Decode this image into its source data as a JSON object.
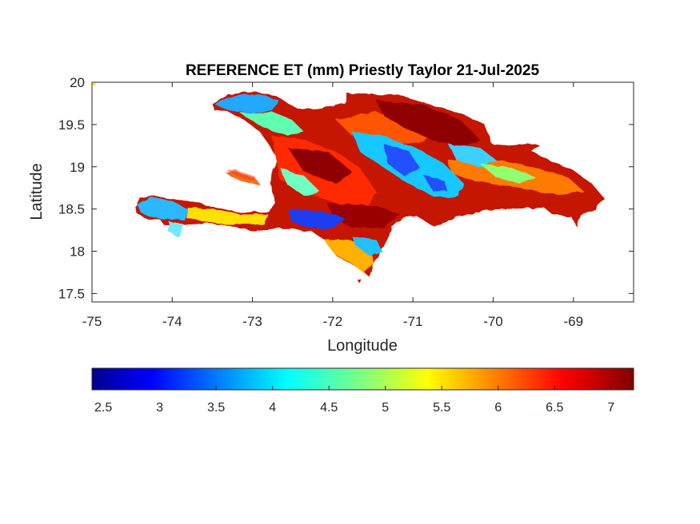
{
  "title": "REFERENCE ET (mm) Priestly Taylor 21-Jul-2025",
  "axes": {
    "xlabel": "Longitude",
    "ylabel": "Latitude",
    "xlim": [
      -75,
      -68.25
    ],
    "ylim": [
      17.4,
      20
    ],
    "xticks": [
      -75,
      -74,
      -73,
      -72,
      -71,
      -70,
      -69
    ],
    "xtick_labels": [
      "-75",
      "-74",
      "-73",
      "-72",
      "-71",
      "-70",
      "-69"
    ],
    "yticks": [
      17.5,
      18,
      18.5,
      19,
      19.5,
      20
    ],
    "ytick_labels": [
      "17.5",
      "18",
      "18.5",
      "19",
      "19.5",
      "20"
    ]
  },
  "colorbar": {
    "colormap": "jet",
    "range": [
      2.4,
      7.2
    ],
    "ticks": [
      2.5,
      3,
      3.5,
      4,
      4.5,
      5,
      5.5,
      6,
      6.5,
      7
    ],
    "tick_labels": [
      "2.5",
      "3",
      "3.5",
      "4",
      "4.5",
      "5",
      "5.5",
      "6",
      "6.5",
      "7"
    ]
  },
  "map": {
    "region": "Hispaniola",
    "variable": "Reference ET (mm)",
    "value_range_shown": [
      2.5,
      7.2
    ],
    "dominant_value": 6.8,
    "low_value_zones": [
      {
        "area": "southwest peninsula",
        "value": 3.8
      },
      {
        "area": "northwest peninsula",
        "value": 4.0
      },
      {
        "area": "central mountains",
        "value": 3.6
      },
      {
        "area": "southern ridge",
        "value": 3.4
      }
    ]
  }
}
